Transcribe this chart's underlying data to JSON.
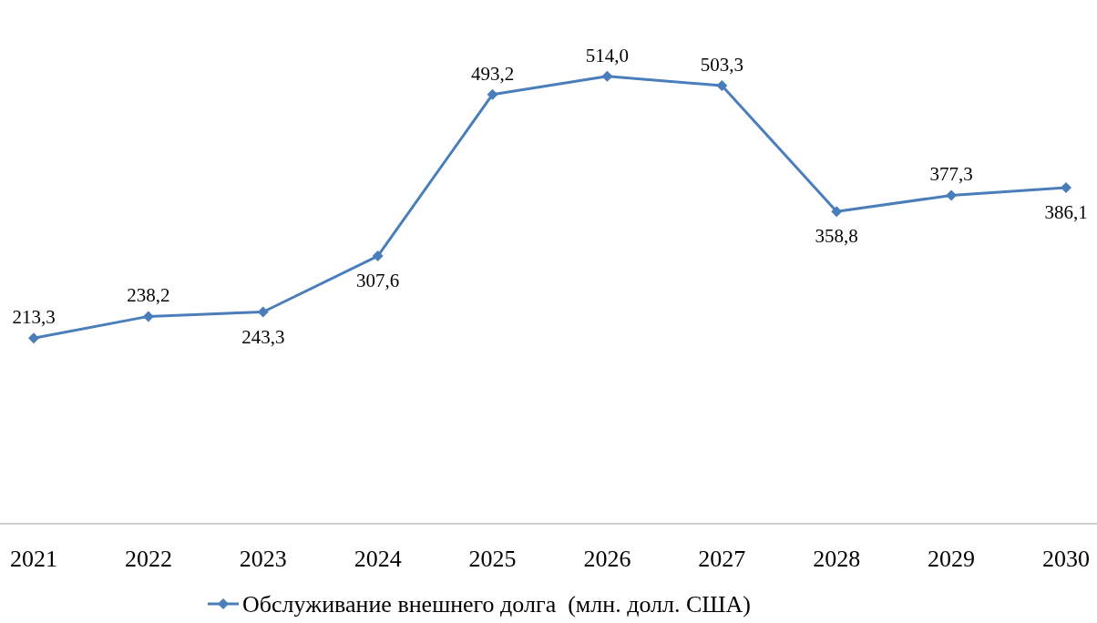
{
  "chart_data": {
    "type": "line",
    "categories": [
      "2021",
      "2022",
      "2023",
      "2024",
      "2025",
      "2026",
      "2027",
      "2028",
      "2029",
      "2030"
    ],
    "series": [
      {
        "name": "Обслуживание внешнего долга  (млн. долл. США)",
        "color": "#4a7ebb",
        "values": [
          213.3,
          238.2,
          243.3,
          307.6,
          493.2,
          514.0,
          503.3,
          358.8,
          377.3,
          386.1
        ],
        "value_labels": [
          "213,3",
          "238,2",
          "243,3",
          "307,6",
          "493,2",
          "514,0",
          "503,3",
          "358,8",
          "377,3",
          "386,1"
        ]
      }
    ],
    "marker": "diamond",
    "legend": "bottom",
    "tick_labels": "x"
  }
}
